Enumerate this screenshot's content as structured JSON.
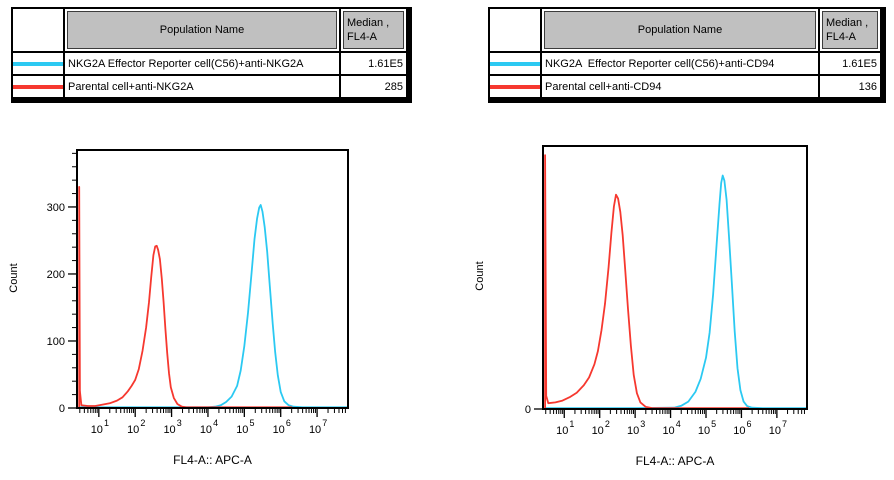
{
  "tables": [
    {
      "header": {
        "population": "Population Name",
        "median_line1": "Median ,",
        "median_line2": "FL4-A"
      },
      "rows": [
        {
          "color": "#2bc9f2",
          "name": "NKG2A Effector Reporter cell(C56)+anti-NKG2A",
          "median": "1.61E5"
        },
        {
          "color": "#f6382f",
          "name": "Parental cell+anti-NKG2A",
          "median": "285"
        }
      ]
    },
    {
      "header": {
        "population": "Population Name",
        "median_line1": "Median ,",
        "median_line2": "FL4-A"
      },
      "rows": [
        {
          "color": "#2bc9f2",
          "name": "NKG2A  Effector Reporter cell(C56)+anti-CD94",
          "median": "1.61E5"
        },
        {
          "color": "#f6382f",
          "name": "Parental cell+anti-CD94",
          "median": "136"
        }
      ]
    }
  ],
  "chart_data": [
    {
      "type": "line",
      "subtype": "flow-cytometry-histogram",
      "title": "",
      "xlabel": "FL4-A:: APC-A",
      "ylabel": "Count",
      "xscale": "log",
      "xlim_log10": [
        0.4,
        7.85
      ],
      "x_major_ticks_log10": [
        1,
        2,
        3,
        4,
        5,
        6,
        7
      ],
      "x_tick_label_base": "10",
      "ylim": [
        0,
        385
      ],
      "y_major_ticks": [
        0,
        100,
        200,
        300
      ],
      "y_minor_step": 20,
      "grid": false,
      "legend_position": "table-above",
      "series": [
        {
          "name": "NKG2A Effector Reporter cell(C56)+anti-NKG2A",
          "color": "#2bc9f2",
          "peak": {
            "x": 280000.0,
            "count": 303
          },
          "points_log10x_count": [
            [
              0.46,
              1
            ],
            [
              1.5,
              1
            ],
            [
              3.0,
              1
            ],
            [
              4.0,
              1
            ],
            [
              4.2,
              2
            ],
            [
              4.35,
              4
            ],
            [
              4.5,
              9
            ],
            [
              4.65,
              17
            ],
            [
              4.8,
              33
            ],
            [
              4.9,
              56
            ],
            [
              5.0,
              92
            ],
            [
              5.1,
              142
            ],
            [
              5.2,
              202
            ],
            [
              5.28,
              252
            ],
            [
              5.35,
              283
            ],
            [
              5.41,
              299
            ],
            [
              5.45,
              303
            ],
            [
              5.5,
              293
            ],
            [
              5.56,
              270
            ],
            [
              5.63,
              233
            ],
            [
              5.7,
              182
            ],
            [
              5.78,
              126
            ],
            [
              5.85,
              83
            ],
            [
              5.92,
              49
            ],
            [
              6.0,
              24
            ],
            [
              6.1,
              10
            ],
            [
              6.22,
              4
            ],
            [
              6.35,
              2
            ],
            [
              6.6,
              1
            ],
            [
              7.2,
              1
            ],
            [
              7.85,
              1
            ]
          ]
        },
        {
          "name": "Parental cell+anti-NKG2A",
          "color": "#f6382f",
          "peak": {
            "x": 390.0,
            "count": 242
          },
          "boundary_spike_count": 330,
          "points_log10x_count": [
            [
              0.46,
              0
            ],
            [
              0.46,
              330
            ],
            [
              0.48,
              25
            ],
            [
              0.52,
              4
            ],
            [
              0.7,
              3
            ],
            [
              0.9,
              3
            ],
            [
              1.1,
              5
            ],
            [
              1.3,
              7
            ],
            [
              1.5,
              11
            ],
            [
              1.65,
              16
            ],
            [
              1.8,
              25
            ],
            [
              1.9,
              33
            ],
            [
              2.0,
              42
            ],
            [
              2.1,
              58
            ],
            [
              2.2,
              85
            ],
            [
              2.3,
              120
            ],
            [
              2.38,
              158
            ],
            [
              2.44,
              195
            ],
            [
              2.5,
              228
            ],
            [
              2.55,
              241
            ],
            [
              2.59,
              242
            ],
            [
              2.63,
              236
            ],
            [
              2.68,
              222
            ],
            [
              2.73,
              193
            ],
            [
              2.78,
              158
            ],
            [
              2.83,
              118
            ],
            [
              2.88,
              82
            ],
            [
              2.93,
              52
            ],
            [
              2.98,
              31
            ],
            [
              3.06,
              15
            ],
            [
              3.16,
              6
            ],
            [
              3.28,
              2
            ],
            [
              3.4,
              1
            ],
            [
              4.5,
              1
            ],
            [
              6.3,
              1
            ]
          ]
        }
      ]
    },
    {
      "type": "line",
      "subtype": "flow-cytometry-histogram",
      "title": "",
      "xlabel": "FL4-A:: APC-A",
      "ylabel": "Count",
      "xscale": "log",
      "xlim_log10": [
        0.4,
        7.85
      ],
      "x_major_ticks_log10": [
        1,
        2,
        3,
        4,
        5,
        6,
        7
      ],
      "x_tick_label_base": "10",
      "ylim": [
        0,
        1
      ],
      "y_axis_note": "only 0 labeled; values normalized to plot height",
      "y_major_ticks": [
        0
      ],
      "y_minor_step": null,
      "grid": false,
      "legend_position": "table-above",
      "series": [
        {
          "name": "NKG2A  Effector Reporter cell(C56)+anti-CD94",
          "color": "#2bc9f2",
          "peak": {
            "x": 280000.0,
            "height_fraction": 0.89
          },
          "points_log10x_count": [
            [
              0.46,
              0.003
            ],
            [
              1.5,
              0.003
            ],
            [
              3.0,
              0.003
            ],
            [
              4.1,
              0.005
            ],
            [
              4.3,
              0.012
            ],
            [
              4.5,
              0.028
            ],
            [
              4.7,
              0.065
            ],
            [
              4.85,
              0.115
            ],
            [
              5.0,
              0.195
            ],
            [
              5.1,
              0.29
            ],
            [
              5.2,
              0.435
            ],
            [
              5.3,
              0.625
            ],
            [
              5.38,
              0.78
            ],
            [
              5.43,
              0.86
            ],
            [
              5.47,
              0.888
            ],
            [
              5.52,
              0.868
            ],
            [
              5.58,
              0.795
            ],
            [
              5.65,
              0.655
            ],
            [
              5.73,
              0.475
            ],
            [
              5.81,
              0.295
            ],
            [
              5.89,
              0.155
            ],
            [
              5.97,
              0.072
            ],
            [
              6.06,
              0.028
            ],
            [
              6.16,
              0.011
            ],
            [
              6.3,
              0.005
            ],
            [
              6.6,
              0.003
            ],
            [
              7.2,
              0.003
            ],
            [
              7.85,
              0.003
            ]
          ]
        },
        {
          "name": "Parental cell+anti-CD94",
          "color": "#f6382f",
          "peak": {
            "x": 290.0,
            "height_fraction": 0.815
          },
          "boundary_spike_height_fraction": 0.965,
          "points_log10x_count": [
            [
              0.46,
              0
            ],
            [
              0.46,
              0.965
            ],
            [
              0.49,
              0.05
            ],
            [
              0.55,
              0.022
            ],
            [
              0.75,
              0.025
            ],
            [
              0.95,
              0.032
            ],
            [
              1.15,
              0.045
            ],
            [
              1.35,
              0.062
            ],
            [
              1.55,
              0.09
            ],
            [
              1.7,
              0.12
            ],
            [
              1.85,
              0.17
            ],
            [
              1.95,
              0.22
            ],
            [
              2.05,
              0.3
            ],
            [
              2.15,
              0.4
            ],
            [
              2.25,
              0.54
            ],
            [
              2.33,
              0.67
            ],
            [
              2.4,
              0.77
            ],
            [
              2.46,
              0.815
            ],
            [
              2.52,
              0.8
            ],
            [
              2.58,
              0.75
            ],
            [
              2.65,
              0.66
            ],
            [
              2.72,
              0.53
            ],
            [
              2.8,
              0.38
            ],
            [
              2.88,
              0.24
            ],
            [
              2.96,
              0.13
            ],
            [
              3.05,
              0.06
            ],
            [
              3.15,
              0.025
            ],
            [
              3.3,
              0.008
            ],
            [
              3.5,
              0.003
            ],
            [
              4.5,
              0.003
            ],
            [
              6.2,
              0.003
            ]
          ]
        }
      ]
    }
  ]
}
